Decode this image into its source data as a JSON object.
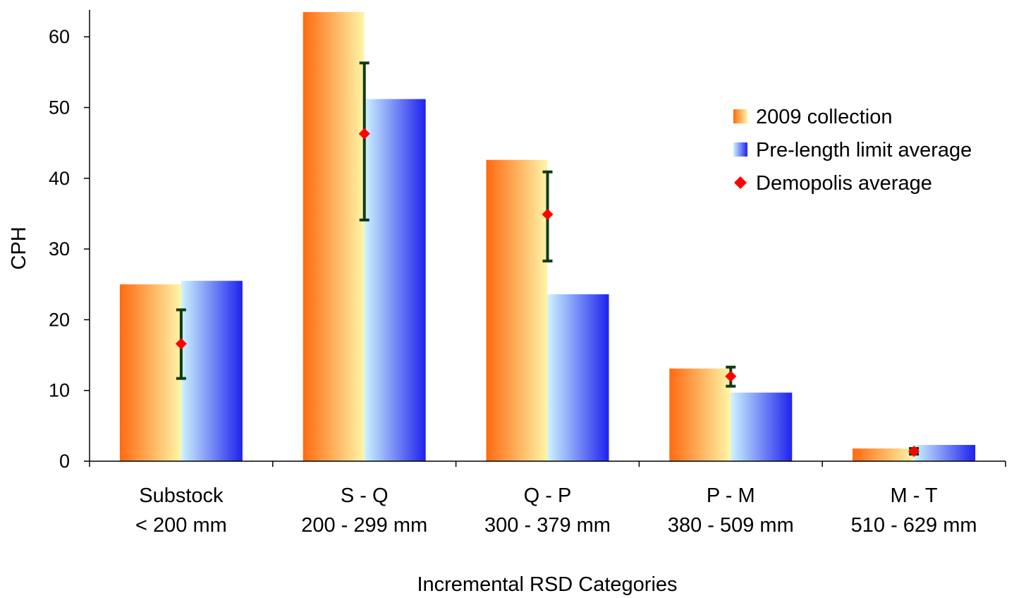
{
  "chart_data": {
    "type": "bar",
    "xlabel": "Incremental RSD Categories",
    "ylabel": "CPH",
    "ylim": [
      0,
      63
    ],
    "yticks": [
      "0",
      "10",
      "20",
      "30",
      "40",
      "50",
      "60"
    ],
    "categories": [
      {
        "line1": "Substock",
        "line2": "< 200 mm"
      },
      {
        "line1": "S - Q",
        "line2": "200 - 299 mm"
      },
      {
        "line1": "Q - P",
        "line2": "300 - 379 mm"
      },
      {
        "line1": "P - M",
        "line2": "380 - 509 mm"
      },
      {
        "line1": "M - T",
        "line2": "510 - 629 mm"
      }
    ],
    "series": [
      {
        "name": "2009 collection",
        "values": [
          25.0,
          63.5,
          42.6,
          13.1,
          1.8
        ]
      },
      {
        "name": "Pre-length limit average",
        "values": [
          25.5,
          51.2,
          23.6,
          9.7,
          2.3
        ]
      }
    ],
    "points": {
      "name": "Demopolis average",
      "values": [
        16.6,
        46.3,
        34.9,
        12.0,
        1.4
      ],
      "error_low": [
        11.7,
        34.1,
        28.3,
        10.6,
        1.0
      ],
      "error_high": [
        21.4,
        56.3,
        40.9,
        13.3,
        1.8
      ]
    },
    "legend": {
      "position": "top-right",
      "items": [
        "2009 collection",
        "Pre-length limit average",
        "Demopolis average"
      ]
    },
    "colors": {
      "orange_dark": "#ff6a10",
      "orange_light": "#fff6a8",
      "blue_light": "#cdf4ff",
      "blue_dark": "#1e22ee",
      "marker": "#ff0000",
      "error_bar": "#0f3a14",
      "axis": "#000000"
    }
  }
}
